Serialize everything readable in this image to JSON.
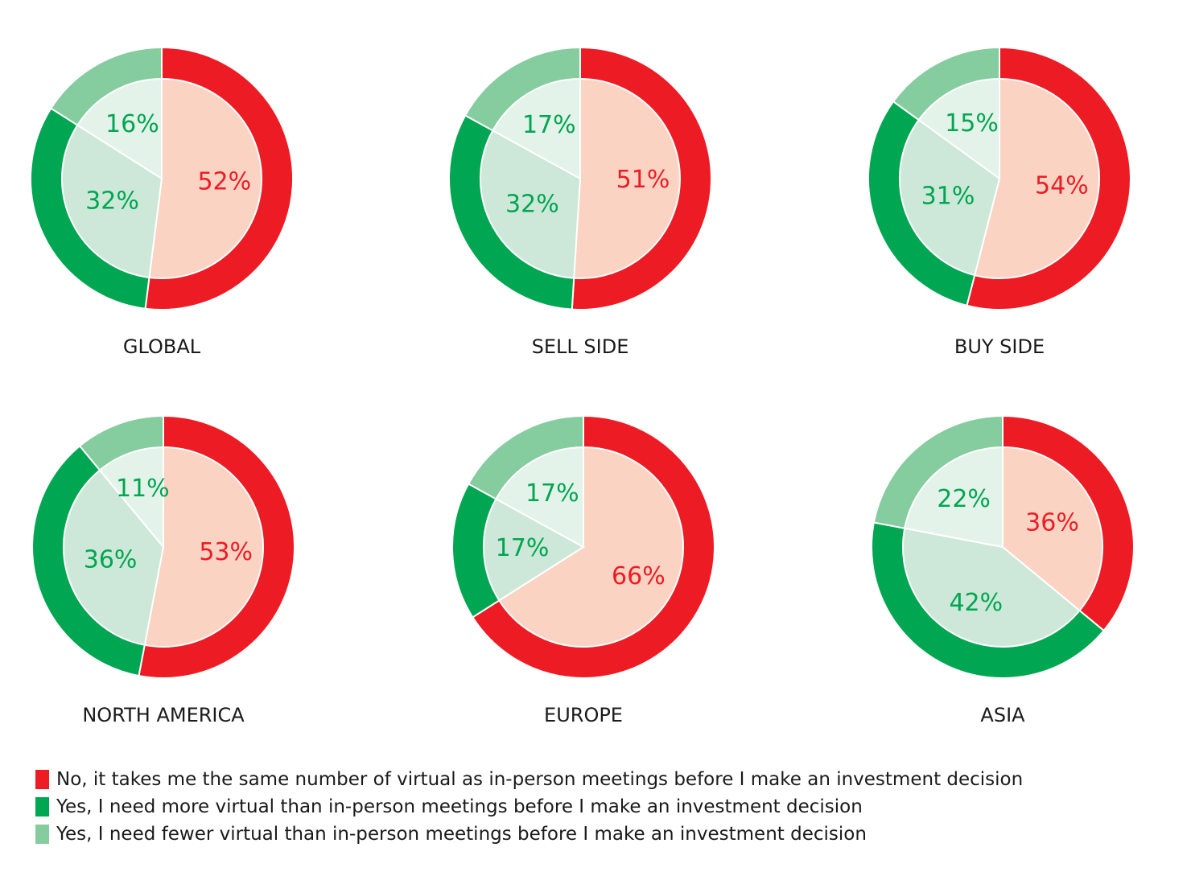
{
  "colors": {
    "no_outer": "#ed1c24",
    "no_inner": "#fad3c3",
    "no_text": "#ed1c24",
    "more_outer": "#00a651",
    "more_inner": "#cde8d8",
    "fewer_outer": "#85cc9f",
    "fewer_inner": "#e4f3e9",
    "green_text": "#00a651"
  },
  "legend": {
    "items": [
      {
        "label": "No, it takes me the same number of virtual as in-person meetings before I make an investment decision",
        "color": "#ed1c24"
      },
      {
        "label": "Yes, I need more virtual than in-person meetings before I make an investment decision",
        "color": "#00a651"
      },
      {
        "label": "Yes, I need fewer virtual than in-person meetings before I make an investment decision",
        "color": "#85cc9f"
      }
    ]
  },
  "chart_data": [
    {
      "type": "pie",
      "title": "GLOBAL",
      "categories": [
        "No",
        "Yes, more",
        "Yes, fewer"
      ],
      "values": [
        52,
        32,
        16
      ],
      "labels": [
        "52%",
        "32%",
        "16%"
      ]
    },
    {
      "type": "pie",
      "title": "SELL SIDE",
      "categories": [
        "No",
        "Yes, more",
        "Yes, fewer"
      ],
      "values": [
        51,
        32,
        17
      ],
      "labels": [
        "51%",
        "32%",
        "17%"
      ]
    },
    {
      "type": "pie",
      "title": "BUY SIDE",
      "categories": [
        "No",
        "Yes, more",
        "Yes, fewer"
      ],
      "values": [
        54,
        31,
        15
      ],
      "labels": [
        "54%",
        "31%",
        "15%"
      ]
    },
    {
      "type": "pie",
      "title": "NORTH AMERICA",
      "categories": [
        "No",
        "Yes, more",
        "Yes, fewer"
      ],
      "values": [
        53,
        36,
        11
      ],
      "labels": [
        "53%",
        "36%",
        "11%"
      ]
    },
    {
      "type": "pie",
      "title": "EUROPE",
      "categories": [
        "No",
        "Yes, more",
        "Yes, fewer"
      ],
      "values": [
        66,
        17,
        17
      ],
      "labels": [
        "66%",
        "17%",
        "17%"
      ]
    },
    {
      "type": "pie",
      "title": "ASIA",
      "categories": [
        "No",
        "Yes, more",
        "Yes, fewer"
      ],
      "values": [
        36,
        42,
        22
      ],
      "labels": [
        "36%",
        "42%",
        "22%"
      ]
    }
  ]
}
